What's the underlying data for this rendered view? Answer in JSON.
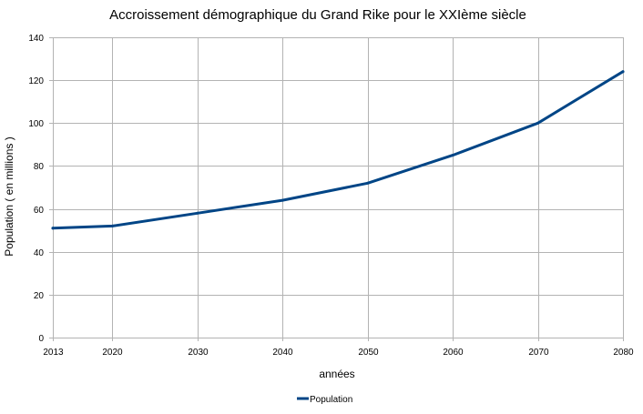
{
  "chart_data": {
    "type": "line",
    "title": "Accroissement démographique du Grand Rike pour le XXIème siècle",
    "xlabel": "années",
    "ylabel": "Population ( en millions )",
    "categories": [
      "2013",
      "2020",
      "2030",
      "2040",
      "2050",
      "2060",
      "2070",
      "2080"
    ],
    "series": [
      {
        "name": "Population",
        "color": "#004586",
        "values": [
          51,
          52,
          58,
          64,
          72,
          85,
          100,
          124
        ]
      }
    ],
    "ylim": [
      0,
      140
    ],
    "yticks": [
      0,
      20,
      40,
      60,
      80,
      100,
      120,
      140
    ],
    "grid": true,
    "legend_position": "bottom-center"
  }
}
